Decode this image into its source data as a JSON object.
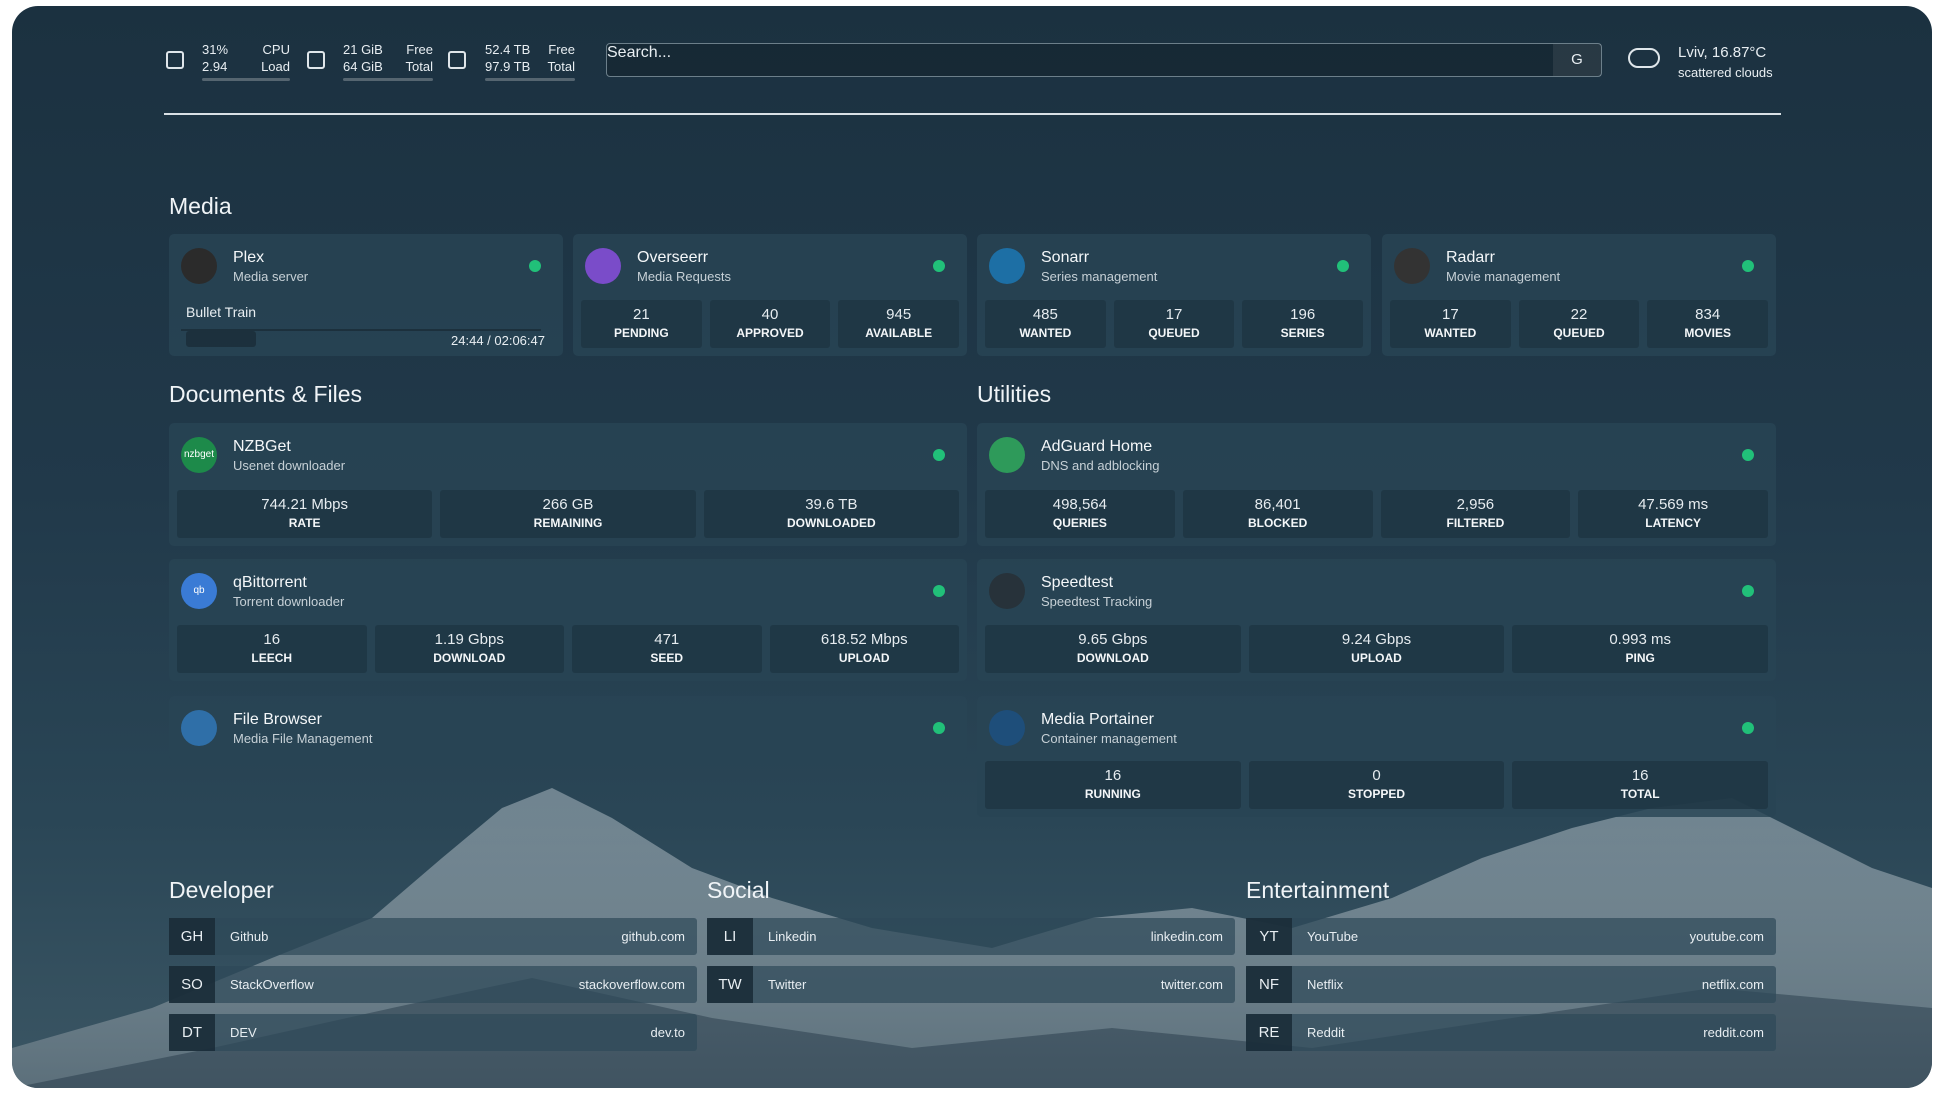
{
  "header": {
    "cpu": {
      "usage": "31%",
      "load": "2.94",
      "usage_label": "CPU",
      "load_label": "Load"
    },
    "memory": {
      "free": "21 GiB",
      "total": "64 GiB",
      "free_label": "Free",
      "total_label": "Total"
    },
    "disk": {
      "free": "52.4 TB",
      "total": "97.9 TB",
      "free_label": "Free",
      "total_label": "Total"
    },
    "search": {
      "placeholder": "Search...",
      "button": "G"
    },
    "weather": {
      "location": "Lviv, 16.87°C",
      "condition": "scattered clouds"
    }
  },
  "sections": [
    {
      "title": "Media",
      "services": [
        {
          "name": "Plex",
          "description": "Media server",
          "now_playing": {
            "title": "Bullet Train",
            "time": "24:44 / 02:06:47"
          }
        },
        {
          "name": "Overseerr",
          "description": "Media Requests",
          "stats": [
            {
              "value": "21",
              "label": "PENDING"
            },
            {
              "value": "40",
              "label": "APPROVED"
            },
            {
              "value": "945",
              "label": "AVAILABLE"
            }
          ]
        },
        {
          "name": "Sonarr",
          "description": "Series management",
          "stats": [
            {
              "value": "485",
              "label": "WANTED"
            },
            {
              "value": "17",
              "label": "QUEUED"
            },
            {
              "value": "196",
              "label": "SERIES"
            }
          ]
        },
        {
          "name": "Radarr",
          "description": "Movie management",
          "stats": [
            {
              "value": "17",
              "label": "WANTED"
            },
            {
              "value": "22",
              "label": "QUEUED"
            },
            {
              "value": "834",
              "label": "MOVIES"
            }
          ]
        }
      ]
    },
    {
      "title": "Documents & Files",
      "services": [
        {
          "name": "NZBGet",
          "description": "Usenet downloader",
          "icon_text": "nzbget",
          "stats": [
            {
              "value": "744.21 Mbps",
              "label": "RATE"
            },
            {
              "value": "266 GB",
              "label": "REMAINING"
            },
            {
              "value": "39.6 TB",
              "label": "DOWNLOADED"
            }
          ]
        },
        {
          "name": "qBittorrent",
          "description": "Torrent downloader",
          "icon_text": "qb",
          "stats": [
            {
              "value": "16",
              "label": "LEECH"
            },
            {
              "value": "1.19 Gbps",
              "label": "DOWNLOAD"
            },
            {
              "value": "471",
              "label": "SEED"
            },
            {
              "value": "618.52 Mbps",
              "label": "UPLOAD"
            }
          ]
        },
        {
          "name": "File Browser",
          "description": "Media File Management"
        }
      ]
    },
    {
      "title": "Utilities",
      "services": [
        {
          "name": "AdGuard Home",
          "description": "DNS and adblocking",
          "stats": [
            {
              "value": "498,564",
              "label": "QUERIES"
            },
            {
              "value": "86,401",
              "label": "BLOCKED"
            },
            {
              "value": "2,956",
              "label": "FILTERED"
            },
            {
              "value": "47.569 ms",
              "label": "LATENCY"
            }
          ]
        },
        {
          "name": "Speedtest",
          "description": "Speedtest Tracking",
          "stats": [
            {
              "value": "9.65 Gbps",
              "label": "DOWNLOAD"
            },
            {
              "value": "9.24 Gbps",
              "label": "UPLOAD"
            },
            {
              "value": "0.993 ms",
              "label": "PING"
            }
          ]
        },
        {
          "name": "Media Portainer",
          "description": "Container management",
          "stats": [
            {
              "value": "16",
              "label": "RUNNING"
            },
            {
              "value": "0",
              "label": "STOPPED"
            },
            {
              "value": "16",
              "label": "TOTAL"
            }
          ]
        }
      ]
    }
  ],
  "bookmarks": [
    {
      "title": "Developer",
      "items": [
        {
          "abbr": "GH",
          "name": "Github",
          "url": "github.com"
        },
        {
          "abbr": "SO",
          "name": "StackOverflow",
          "url": "stackoverflow.com"
        },
        {
          "abbr": "DT",
          "name": "DEV",
          "url": "dev.to"
        }
      ]
    },
    {
      "title": "Social",
      "items": [
        {
          "abbr": "LI",
          "name": "Linkedin",
          "url": "linkedin.com"
        },
        {
          "abbr": "TW",
          "name": "Twitter",
          "url": "twitter.com"
        }
      ]
    },
    {
      "title": "Entertainment",
      "items": [
        {
          "abbr": "YT",
          "name": "YouTube",
          "url": "youtube.com"
        },
        {
          "abbr": "NF",
          "name": "Netflix",
          "url": "netflix.com"
        },
        {
          "abbr": "RE",
          "name": "Reddit",
          "url": "reddit.com"
        }
      ]
    }
  ]
}
